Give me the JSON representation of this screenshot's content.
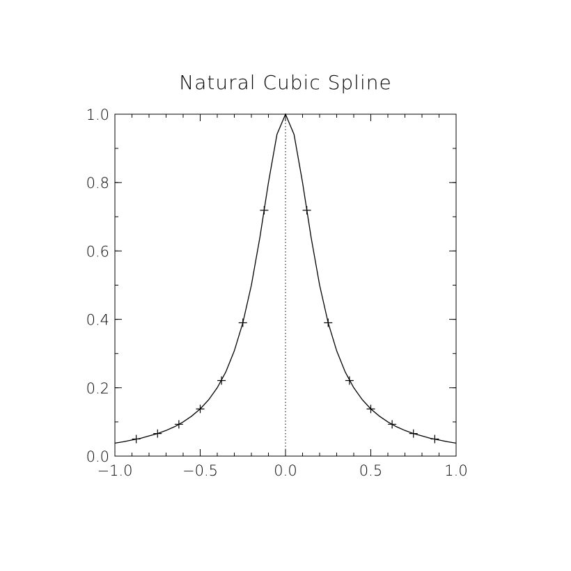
{
  "chart_data": {
    "type": "line",
    "title": "Natural Cubic Spline",
    "xlabel": "",
    "ylabel": "",
    "xlim": [
      -1.0,
      1.0
    ],
    "ylim": [
      0.0,
      1.0
    ],
    "x_ticks": [
      -1.0,
      -0.5,
      0.0,
      0.5,
      1.0
    ],
    "x_tick_labels": [
      "−1.0",
      "−0.5",
      "0.0",
      "0.5",
      "1.0"
    ],
    "y_ticks": [
      0.0,
      0.2,
      0.4,
      0.6,
      0.8,
      1.0
    ],
    "y_tick_labels": [
      "0.0",
      "0.2",
      "0.4",
      "0.6",
      "0.8",
      "1.0"
    ],
    "grid": false,
    "reference_line": {
      "style": "dotted",
      "x": 0.0
    },
    "series": [
      {
        "style": "solid-line",
        "x": [
          -1.0,
          -0.95,
          -0.9,
          -0.85,
          -0.8,
          -0.75,
          -0.7,
          -0.65,
          -0.6,
          -0.55,
          -0.5,
          -0.45,
          -0.4,
          -0.35,
          -0.3,
          -0.25,
          -0.2,
          -0.15,
          -0.1,
          -0.05,
          0.0,
          0.05,
          0.1,
          0.15,
          0.2,
          0.25,
          0.3,
          0.35,
          0.4,
          0.45,
          0.5,
          0.55,
          0.6,
          0.65,
          0.7,
          0.75,
          0.8,
          0.85,
          0.9,
          0.95,
          1.0
        ],
        "y": [
          0.038,
          0.042,
          0.047,
          0.052,
          0.059,
          0.066,
          0.075,
          0.086,
          0.1,
          0.117,
          0.138,
          0.165,
          0.2,
          0.246,
          0.308,
          0.39,
          0.5,
          0.64,
          0.8,
          0.941,
          1.0,
          0.941,
          0.8,
          0.64,
          0.5,
          0.39,
          0.308,
          0.246,
          0.2,
          0.165,
          0.138,
          0.117,
          0.1,
          0.086,
          0.075,
          0.066,
          0.059,
          0.052,
          0.047,
          0.042,
          0.038
        ]
      },
      {
        "style": "plus-markers",
        "x": [
          -0.875,
          -0.75,
          -0.625,
          -0.5,
          -0.375,
          -0.25,
          -0.125,
          0.125,
          0.25,
          0.375,
          0.5,
          0.625,
          0.75,
          0.875
        ],
        "y": [
          0.05,
          0.066,
          0.093,
          0.138,
          0.221,
          0.39,
          0.719,
          0.719,
          0.39,
          0.221,
          0.138,
          0.093,
          0.066,
          0.05
        ]
      }
    ]
  }
}
